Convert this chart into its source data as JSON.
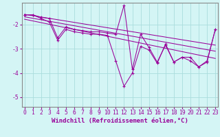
{
  "x": [
    0,
    1,
    2,
    3,
    4,
    5,
    6,
    7,
    8,
    9,
    10,
    11,
    12,
    13,
    14,
    15,
    16,
    17,
    18,
    19,
    20,
    21,
    22,
    23
  ],
  "line1": [
    -1.6,
    -1.6,
    -1.7,
    -1.75,
    -2.55,
    -2.1,
    -2.2,
    -2.25,
    -2.3,
    -2.3,
    -2.35,
    -2.4,
    -1.2,
    -3.85,
    -2.4,
    -2.95,
    -3.55,
    -2.85,
    -3.55,
    -3.35,
    -3.5,
    -3.75,
    -3.5,
    -2.2
  ],
  "line2": [
    -1.6,
    -1.6,
    -1.75,
    -1.9,
    -2.65,
    -2.2,
    -2.3,
    -2.35,
    -2.4,
    -2.4,
    -2.45,
    -3.5,
    -4.55,
    -4.0,
    -2.9,
    -3.05,
    -3.6,
    -2.8,
    -3.55,
    -3.35,
    -3.35,
    -3.75,
    -3.55,
    -2.2
  ],
  "line3_x": [
    0,
    23
  ],
  "line3_y": [
    -1.58,
    -2.85
  ],
  "line4_x": [
    0,
    23
  ],
  "line4_y": [
    -1.68,
    -3.1
  ],
  "line5_x": [
    0,
    23
  ],
  "line5_y": [
    -1.78,
    -3.4
  ],
  "background_color": "#d4f5f5",
  "line_color": "#990099",
  "grid_color": "#aadddd",
  "ylim": [
    -5.4,
    -1.1
  ],
  "yticks": [
    -5,
    -4,
    -3,
    -2
  ],
  "xlim": [
    -0.3,
    23.3
  ],
  "xlabel": "Windchill (Refroidissement éolien,°C)",
  "xlabel_fontsize": 6.5,
  "tick_fontsize": 5.8,
  "spine_color": "#888888"
}
